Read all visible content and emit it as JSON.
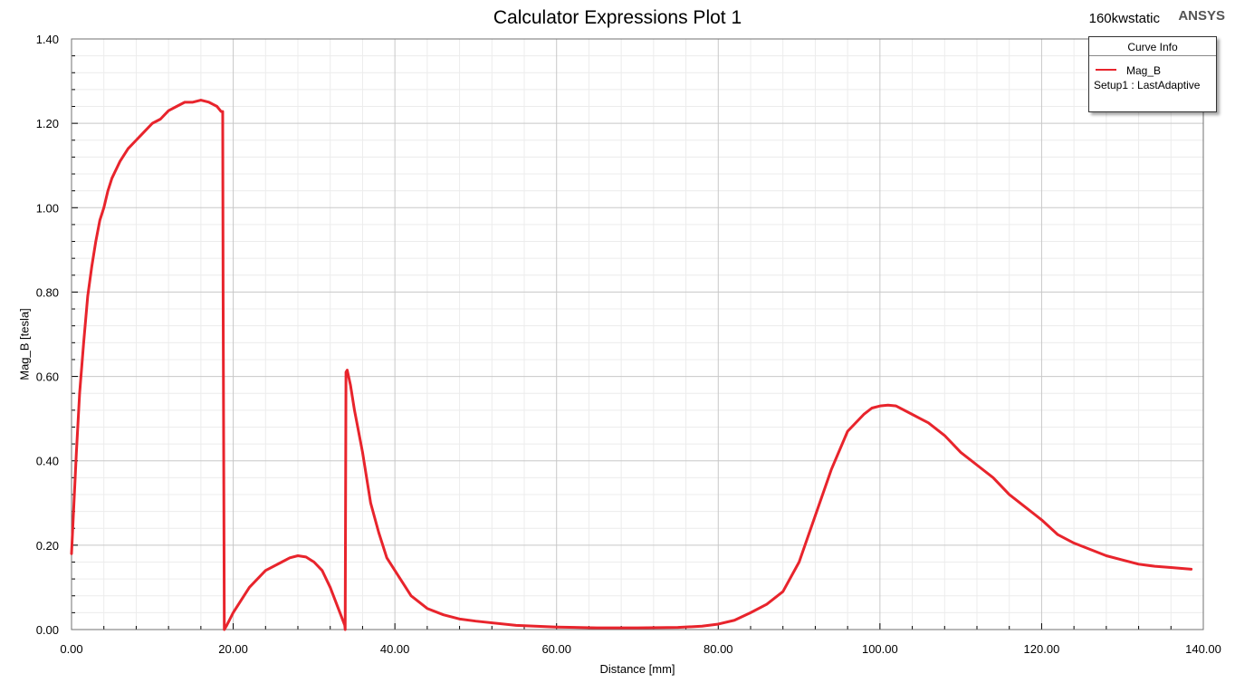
{
  "header": {
    "title": "Calculator Expressions Plot 1",
    "project": "160kwstatic",
    "brand": "ANSYS"
  },
  "legend": {
    "title": "Curve Info",
    "series_name": "Mag_B",
    "setup": "Setup1 : LastAdaptive"
  },
  "colors": {
    "series": "#e8242c",
    "grid": "#c8c8c8",
    "minor_grid": "#ececec"
  },
  "chart_data": {
    "type": "line",
    "title": "Calculator Expressions Plot 1",
    "xlabel": "Distance [mm]",
    "ylabel": "Mag_B [tesla]",
    "xlim": [
      0,
      140
    ],
    "ylim": [
      0,
      1.4
    ],
    "x_ticks": [
      "0.00",
      "20.00",
      "40.00",
      "60.00",
      "80.00",
      "100.00",
      "120.00",
      "140.00"
    ],
    "y_ticks": [
      "0.00",
      "0.20",
      "0.40",
      "0.60",
      "0.80",
      "1.00",
      "1.20",
      "1.40"
    ],
    "grid": true,
    "legend_position": "top-right",
    "series": [
      {
        "name": "Mag_B",
        "x": [
          0,
          0.3,
          0.6,
          1,
          1.5,
          2,
          2.5,
          3,
          3.5,
          4,
          4.5,
          5,
          6,
          7,
          8,
          9,
          10,
          11,
          12,
          13,
          14,
          15,
          16,
          17,
          17.5,
          18,
          18.5,
          18.7,
          18.75,
          18.9,
          19.2,
          20,
          22,
          24,
          26,
          27,
          28,
          29,
          30,
          31,
          32,
          33,
          33.8,
          33.85,
          33.95,
          34.1,
          34.5,
          35,
          36,
          37,
          38,
          39,
          40,
          42,
          44,
          46,
          48,
          50,
          55,
          60,
          65,
          70,
          75,
          78,
          80,
          82,
          84,
          86,
          88,
          90,
          92,
          94,
          96,
          98,
          99,
          100,
          101,
          102,
          104,
          106,
          108,
          110,
          112,
          114,
          116,
          118,
          120,
          122,
          124,
          126,
          128,
          130,
          132,
          134,
          136,
          138.5
        ],
        "y": [
          0.18,
          0.3,
          0.42,
          0.56,
          0.68,
          0.79,
          0.86,
          0.92,
          0.97,
          1.0,
          1.04,
          1.07,
          1.11,
          1.14,
          1.16,
          1.18,
          1.2,
          1.21,
          1.23,
          1.24,
          1.25,
          1.25,
          1.255,
          1.25,
          1.245,
          1.24,
          1.228,
          1.228,
          0.8,
          0.0,
          0.01,
          0.04,
          0.1,
          0.14,
          0.16,
          0.17,
          0.175,
          0.172,
          0.16,
          0.14,
          0.1,
          0.05,
          0.01,
          0.0,
          0.61,
          0.615,
          0.58,
          0.52,
          0.42,
          0.3,
          0.23,
          0.17,
          0.14,
          0.08,
          0.05,
          0.035,
          0.025,
          0.02,
          0.01,
          0.006,
          0.004,
          0.004,
          0.005,
          0.008,
          0.013,
          0.022,
          0.04,
          0.06,
          0.09,
          0.16,
          0.27,
          0.38,
          0.47,
          0.51,
          0.525,
          0.53,
          0.532,
          0.53,
          0.51,
          0.49,
          0.46,
          0.42,
          0.39,
          0.36,
          0.32,
          0.29,
          0.26,
          0.225,
          0.205,
          0.19,
          0.175,
          0.165,
          0.155,
          0.15,
          0.147,
          0.143
        ]
      }
    ]
  }
}
